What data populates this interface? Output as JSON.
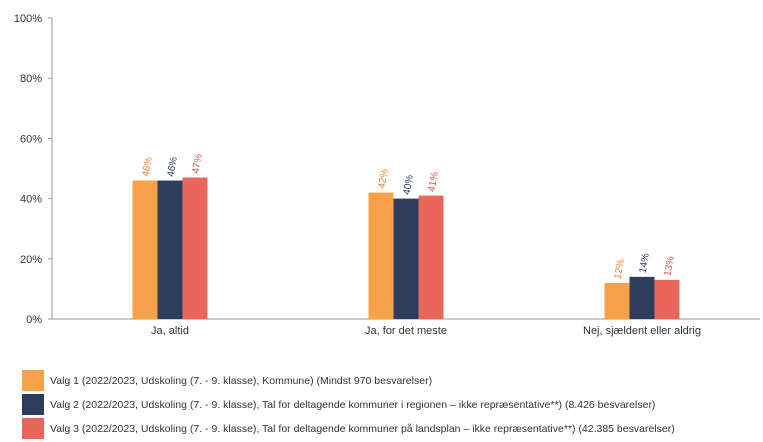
{
  "chart_data": {
    "type": "bar",
    "categories": [
      "Ja, altid",
      "Ja, for det meste",
      "Nej, sjældent eller aldrig"
    ],
    "series": [
      {
        "name": "Valg 1 (2022/2023, Udskoling (7. - 9. klasse), Kommune) (Mindst 970 besvarelser)",
        "values": [
          46,
          42,
          12
        ],
        "labels": [
          "46%",
          "42%",
          "12%"
        ],
        "color": "#F7A24B",
        "label_color": "#E8833A"
      },
      {
        "name": "Valg 2 (2022/2023, Udskoling (7. - 9. klasse), Tal for deltagende kommuner i regionen – ikke repræsentative**) (8.426 besvarelser)",
        "values": [
          46,
          40,
          14
        ],
        "labels": [
          "46%",
          "40%",
          "14%"
        ],
        "color": "#2E3D5C",
        "label_color": "#2E3D5C"
      },
      {
        "name": "Valg 3 (2022/2023, Udskoling (7. - 9. klasse), Tal for deltagende kommuner på landsplan – ikke repræsentative**) (42.385 besvarelser)",
        "values": [
          47,
          41,
          13
        ],
        "labels": [
          "47%",
          "41%",
          "13%"
        ],
        "color": "#E8675A",
        "label_color": "#D9534F"
      }
    ],
    "ylim": [
      0,
      100
    ],
    "yticks": [
      "0%",
      "20%",
      "40%",
      "60%",
      "80%",
      "100%"
    ],
    "ytick_values": [
      0,
      20,
      40,
      60,
      80,
      100
    ],
    "grid": false,
    "legend_position": "bottom-left"
  }
}
